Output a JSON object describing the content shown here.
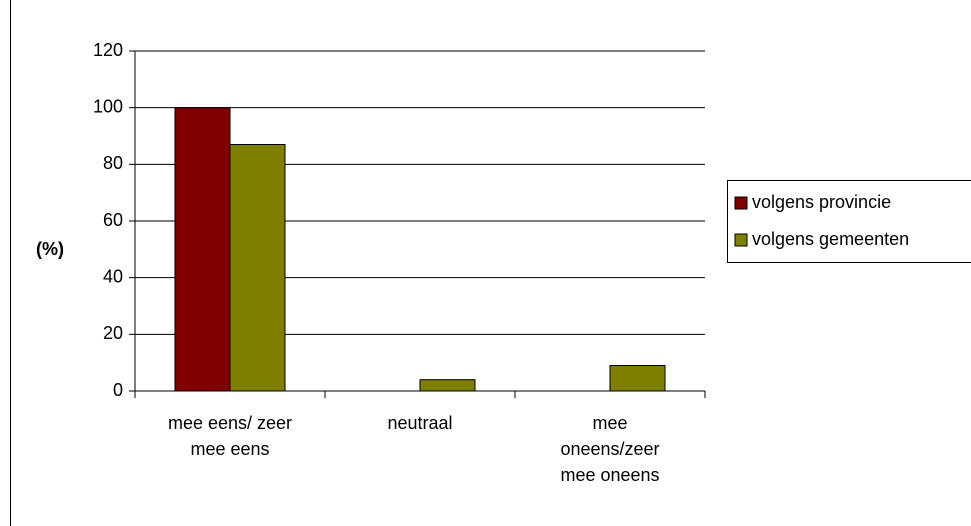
{
  "chart_data": {
    "type": "bar",
    "y_label": "(%)",
    "categories": [
      "mee eens/ zeer mee eens",
      "neutraal",
      "mee oneens/zeer mee oneens"
    ],
    "series": [
      {
        "name": "volgens provincie",
        "color": "#800000",
        "values": [
          100,
          0,
          0
        ]
      },
      {
        "name": "volgens gemeenten",
        "color": "#808000",
        "values": [
          87,
          4,
          9
        ]
      }
    ],
    "ylim": [
      0,
      120
    ],
    "yticks": [
      0,
      20,
      40,
      60,
      80,
      100,
      120
    ],
    "grid": true,
    "legend": "right"
  }
}
